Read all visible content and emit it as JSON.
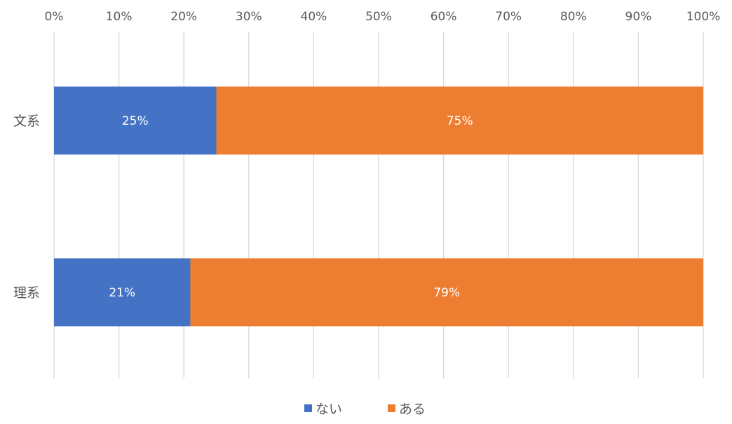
{
  "chart_data": {
    "type": "bar",
    "orientation": "horizontal",
    "stacked": "percent",
    "title": "",
    "xlabel": "",
    "ylabel": "",
    "categories": [
      "文系",
      "理系"
    ],
    "xlim": [
      0,
      100
    ],
    "x_ticks": [
      "0%",
      "10%",
      "20%",
      "30%",
      "40%",
      "50%",
      "60%",
      "70%",
      "80%",
      "90%",
      "100%"
    ],
    "x_axis_position": "top",
    "grid": true,
    "legend_position": "bottom",
    "series": [
      {
        "name": "ない",
        "color": "#4472C4",
        "values": [
          25,
          21
        ],
        "labels": [
          "25%",
          "21%"
        ]
      },
      {
        "name": "ある",
        "color": "#ED7D31",
        "values": [
          75,
          79
        ],
        "labels": [
          "75%",
          "79%"
        ]
      }
    ]
  }
}
